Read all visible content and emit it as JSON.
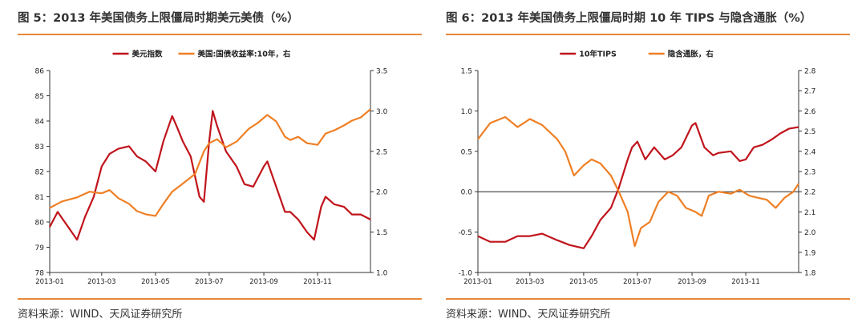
{
  "colors": {
    "primary": "#c0141c",
    "secondary": "#ef7f24",
    "rule": "#e8883a",
    "axis": "#333333"
  },
  "chart_data": [
    {
      "type": "line",
      "title": "图 5：2013 年美国债务上限僵局时期美元美债（%）",
      "source": "资料来源：WIND、天风证券研究所",
      "x_range": [
        "2013-01-01",
        "2013-12-31"
      ],
      "x_ticks": [
        "2013-01",
        "2013-03",
        "2013-05",
        "2013-07",
        "2013-09",
        "2013-11"
      ],
      "y_left": {
        "min": 78,
        "max": 86,
        "ticks": [
          "78",
          "79",
          "80",
          "81",
          "82",
          "83",
          "84",
          "85",
          "86"
        ]
      },
      "y_right": {
        "min": 1.0,
        "max": 3.5,
        "ticks": [
          "1.0",
          "1.5",
          "2.0",
          "2.5",
          "3.0",
          "3.5"
        ]
      },
      "legend_position": "top",
      "series": [
        {
          "name": "美元指数",
          "axis": "left",
          "color": "#c0141c",
          "points": [
            [
              "2013-01-01",
              79.8
            ],
            [
              "2013-01-10",
              80.4
            ],
            [
              "2013-01-20",
              79.9
            ],
            [
              "2013-02-01",
              79.3
            ],
            [
              "2013-02-10",
              80.2
            ],
            [
              "2013-02-20",
              81.0
            ],
            [
              "2013-03-01",
              82.2
            ],
            [
              "2013-03-10",
              82.7
            ],
            [
              "2013-03-20",
              82.9
            ],
            [
              "2013-04-01",
              83.0
            ],
            [
              "2013-04-10",
              82.6
            ],
            [
              "2013-04-20",
              82.4
            ],
            [
              "2013-05-01",
              82.0
            ],
            [
              "2013-05-10",
              83.2
            ],
            [
              "2013-05-20",
              84.2
            ],
            [
              "2013-05-25",
              83.8
            ],
            [
              "2013-06-01",
              83.2
            ],
            [
              "2013-06-10",
              82.6
            ],
            [
              "2013-06-20",
              81.0
            ],
            [
              "2013-06-25",
              80.8
            ],
            [
              "2013-07-01",
              83.2
            ],
            [
              "2013-07-05",
              84.4
            ],
            [
              "2013-07-10",
              83.8
            ],
            [
              "2013-07-20",
              82.8
            ],
            [
              "2013-08-01",
              82.2
            ],
            [
              "2013-08-10",
              81.5
            ],
            [
              "2013-08-20",
              81.4
            ],
            [
              "2013-09-01",
              82.2
            ],
            [
              "2013-09-05",
              82.4
            ],
            [
              "2013-09-15",
              81.4
            ],
            [
              "2013-09-25",
              80.4
            ],
            [
              "2013-10-01",
              80.4
            ],
            [
              "2013-10-10",
              80.1
            ],
            [
              "2013-10-20",
              79.6
            ],
            [
              "2013-10-28",
              79.3
            ],
            [
              "2013-11-05",
              80.6
            ],
            [
              "2013-11-10",
              81.0
            ],
            [
              "2013-11-20",
              80.7
            ],
            [
              "2013-12-01",
              80.6
            ],
            [
              "2013-12-10",
              80.3
            ],
            [
              "2013-12-20",
              80.3
            ],
            [
              "2013-12-31",
              80.1
            ]
          ]
        },
        {
          "name": "美国:国债收益率:10年，右",
          "axis": "right",
          "color": "#ef7f24",
          "points": [
            [
              "2013-01-01",
              1.8
            ],
            [
              "2013-01-15",
              1.88
            ],
            [
              "2013-02-01",
              1.93
            ],
            [
              "2013-02-15",
              2.0
            ],
            [
              "2013-03-01",
              1.98
            ],
            [
              "2013-03-10",
              2.02
            ],
            [
              "2013-03-20",
              1.92
            ],
            [
              "2013-04-01",
              1.85
            ],
            [
              "2013-04-10",
              1.76
            ],
            [
              "2013-04-20",
              1.72
            ],
            [
              "2013-05-01",
              1.7
            ],
            [
              "2013-05-10",
              1.85
            ],
            [
              "2013-05-20",
              2.0
            ],
            [
              "2013-06-01",
              2.1
            ],
            [
              "2013-06-15",
              2.22
            ],
            [
              "2013-06-25",
              2.5
            ],
            [
              "2013-07-01",
              2.6
            ],
            [
              "2013-07-10",
              2.65
            ],
            [
              "2013-07-20",
              2.55
            ],
            [
              "2013-08-01",
              2.62
            ],
            [
              "2013-08-15",
              2.78
            ],
            [
              "2013-08-25",
              2.85
            ],
            [
              "2013-09-05",
              2.95
            ],
            [
              "2013-09-15",
              2.87
            ],
            [
              "2013-09-25",
              2.68
            ],
            [
              "2013-10-01",
              2.64
            ],
            [
              "2013-10-10",
              2.68
            ],
            [
              "2013-10-20",
              2.6
            ],
            [
              "2013-11-01",
              2.58
            ],
            [
              "2013-11-10",
              2.72
            ],
            [
              "2013-11-20",
              2.76
            ],
            [
              "2013-12-01",
              2.82
            ],
            [
              "2013-12-10",
              2.88
            ],
            [
              "2013-12-20",
              2.92
            ],
            [
              "2013-12-31",
              3.02
            ]
          ]
        }
      ]
    },
    {
      "type": "line",
      "title": "图 6：2013 年美国债务上限僵局时期 10 年 TIPS 与隐含通胀（%）",
      "source": "资料来源：WIND、天风证券研究所",
      "x_range": [
        "2013-01-01",
        "2013-12-31"
      ],
      "x_ticks": [
        "2013-01",
        "2013-03",
        "2013-05",
        "2013-07",
        "2013-09",
        "2013-11"
      ],
      "y_left": {
        "min": -1.0,
        "max": 1.5,
        "ticks": [
          "-1.0",
          "-0.5",
          "0.0",
          "0.5",
          "1.0",
          "1.5"
        ]
      },
      "y_right": {
        "min": 1.8,
        "max": 2.8,
        "ticks": [
          "1.8",
          "1.9",
          "2.0",
          "2.1",
          "2.2",
          "2.3",
          "2.4",
          "2.5",
          "2.6",
          "2.7",
          "2.8"
        ]
      },
      "zero_line": 0,
      "legend_position": "top",
      "series": [
        {
          "name": "10年TIPS",
          "axis": "left",
          "color": "#c0141c",
          "points": [
            [
              "2013-01-01",
              -0.55
            ],
            [
              "2013-01-15",
              -0.62
            ],
            [
              "2013-02-01",
              -0.62
            ],
            [
              "2013-02-15",
              -0.55
            ],
            [
              "2013-03-01",
              -0.55
            ],
            [
              "2013-03-15",
              -0.52
            ],
            [
              "2013-04-01",
              -0.6
            ],
            [
              "2013-04-15",
              -0.66
            ],
            [
              "2013-05-01",
              -0.7
            ],
            [
              "2013-05-10",
              -0.55
            ],
            [
              "2013-05-20",
              -0.35
            ],
            [
              "2013-06-01",
              -0.2
            ],
            [
              "2013-06-10",
              0.05
            ],
            [
              "2013-06-20",
              0.4
            ],
            [
              "2013-06-25",
              0.55
            ],
            [
              "2013-07-01",
              0.62
            ],
            [
              "2013-07-10",
              0.4
            ],
            [
              "2013-07-20",
              0.55
            ],
            [
              "2013-08-01",
              0.4
            ],
            [
              "2013-08-10",
              0.45
            ],
            [
              "2013-08-20",
              0.55
            ],
            [
              "2013-09-01",
              0.82
            ],
            [
              "2013-09-05",
              0.85
            ],
            [
              "2013-09-15",
              0.55
            ],
            [
              "2013-09-25",
              0.45
            ],
            [
              "2013-10-01",
              0.48
            ],
            [
              "2013-10-15",
              0.5
            ],
            [
              "2013-10-25",
              0.38
            ],
            [
              "2013-11-01",
              0.4
            ],
            [
              "2013-11-10",
              0.55
            ],
            [
              "2013-11-20",
              0.58
            ],
            [
              "2013-12-01",
              0.65
            ],
            [
              "2013-12-10",
              0.72
            ],
            [
              "2013-12-20",
              0.78
            ],
            [
              "2013-12-31",
              0.8
            ]
          ]
        },
        {
          "name": "隐含通胀，右",
          "axis": "right",
          "color": "#ef7f24",
          "points": [
            [
              "2013-01-01",
              2.46
            ],
            [
              "2013-01-15",
              2.54
            ],
            [
              "2013-02-01",
              2.57
            ],
            [
              "2013-02-15",
              2.52
            ],
            [
              "2013-03-01",
              2.56
            ],
            [
              "2013-03-15",
              2.53
            ],
            [
              "2013-04-01",
              2.46
            ],
            [
              "2013-04-10",
              2.4
            ],
            [
              "2013-04-20",
              2.28
            ],
            [
              "2013-05-01",
              2.33
            ],
            [
              "2013-05-10",
              2.36
            ],
            [
              "2013-05-20",
              2.34
            ],
            [
              "2013-06-01",
              2.28
            ],
            [
              "2013-06-10",
              2.2
            ],
            [
              "2013-06-20",
              2.1
            ],
            [
              "2013-06-28",
              1.93
            ],
            [
              "2013-07-05",
              2.02
            ],
            [
              "2013-07-15",
              2.05
            ],
            [
              "2013-07-25",
              2.15
            ],
            [
              "2013-08-05",
              2.2
            ],
            [
              "2013-08-15",
              2.18
            ],
            [
              "2013-08-25",
              2.12
            ],
            [
              "2013-09-05",
              2.1
            ],
            [
              "2013-09-12",
              2.08
            ],
            [
              "2013-09-20",
              2.18
            ],
            [
              "2013-10-01",
              2.2
            ],
            [
              "2013-10-15",
              2.19
            ],
            [
              "2013-10-25",
              2.21
            ],
            [
              "2013-11-05",
              2.18
            ],
            [
              "2013-11-15",
              2.17
            ],
            [
              "2013-11-25",
              2.16
            ],
            [
              "2013-12-05",
              2.12
            ],
            [
              "2013-12-15",
              2.17
            ],
            [
              "2013-12-25",
              2.2
            ],
            [
              "2013-12-31",
              2.24
            ]
          ]
        }
      ]
    }
  ]
}
